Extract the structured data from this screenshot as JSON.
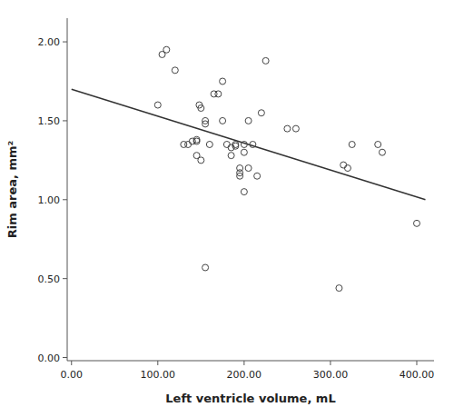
{
  "chart_data": {
    "type": "scatter",
    "xlabel": "Left ventricle volume, mL",
    "ylabel": "Rim area, mm²",
    "xlim": [
      -5,
      420
    ],
    "ylim": [
      -0.02,
      2.15
    ],
    "xticks": [
      {
        "value": 0.0,
        "label": "0.00"
      },
      {
        "value": 100.0,
        "label": "100.00"
      },
      {
        "value": 200.0,
        "label": "200.00"
      },
      {
        "value": 300.0,
        "label": "300.00"
      },
      {
        "value": 400.0,
        "label": "400.00"
      }
    ],
    "yticks": [
      {
        "value": 0.0,
        "label": "0.00"
      },
      {
        "value": 0.5,
        "label": "0.50"
      },
      {
        "value": 1.0,
        "label": "1.00"
      },
      {
        "value": 1.5,
        "label": "1.50"
      },
      {
        "value": 2.0,
        "label": "2.00"
      }
    ],
    "grid": false,
    "series": [
      {
        "type": "scatter",
        "marker": "open-circle",
        "color": "#444444",
        "x": [
          100,
          105,
          110,
          120,
          130,
          135,
          140,
          145,
          145,
          145,
          148,
          150,
          150,
          155,
          155,
          160,
          165,
          170,
          175,
          175,
          180,
          185,
          185,
          190,
          190,
          195,
          195,
          195,
          200,
          200,
          200,
          205,
          205,
          210,
          215,
          220,
          225,
          250,
          260,
          315,
          320,
          325,
          355,
          360,
          400,
          155,
          310
        ],
        "values": [
          1.6,
          1.92,
          1.95,
          1.82,
          1.35,
          1.35,
          1.37,
          1.37,
          1.38,
          1.28,
          1.6,
          1.58,
          1.25,
          1.5,
          1.48,
          1.35,
          1.67,
          1.67,
          1.75,
          1.5,
          1.35,
          1.33,
          1.28,
          1.34,
          1.35,
          1.2,
          1.17,
          1.15,
          1.35,
          1.3,
          1.05,
          1.5,
          1.2,
          1.35,
          1.15,
          1.55,
          1.88,
          1.45,
          1.45,
          1.22,
          1.2,
          1.35,
          1.35,
          1.3,
          0.85,
          0.57,
          0.44
        ]
      },
      {
        "type": "line",
        "color": "#333333",
        "x": [
          0,
          410
        ],
        "values": [
          1.7,
          1.0
        ]
      }
    ]
  }
}
